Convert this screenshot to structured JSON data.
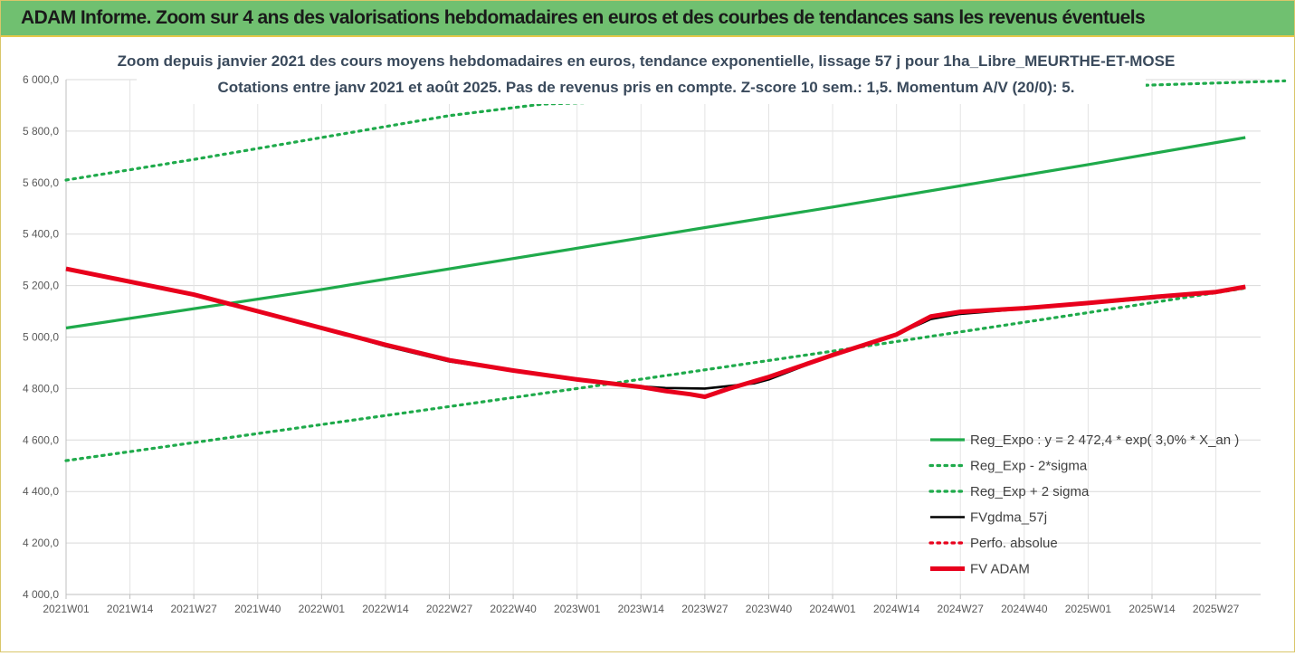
{
  "header": {
    "title": "ADAM Informe. Zoom sur 4 ans des valorisations hebdomadaires en euros et des courbes de tendances sans les revenus éventuels"
  },
  "chart_data": {
    "type": "line",
    "title_line1": "Zoom depuis janvier 2021 des cours moyens hebdomadaires en euros, tendance exponentielle, lissage 57 j pour 1ha_Libre_MEURTHE-ET-MOSE",
    "title_line2": "Cotations entre janv 2021 et août 2025.  Pas de revenus pris en compte. Z-score 10 sem.: 1,5. Momentum A/V (20/0): 5.",
    "ylim": [
      4000,
      6000
    ],
    "y_ticks": [
      "4 000,0",
      "4 200,0",
      "4 400,0",
      "4 600,0",
      "4 800,0",
      "5 000,0",
      "5 200,0",
      "5 400,0",
      "5 600,0",
      "5 800,0",
      "6 000,0"
    ],
    "x_ticks": [
      "2021W01",
      "2021W14",
      "2021W27",
      "2021W40",
      "2022W01",
      "2022W14",
      "2022W27",
      "2022W40",
      "2023W01",
      "2023W14",
      "2023W27",
      "2023W40",
      "2024W01",
      "2024W14",
      "2024W27",
      "2024W40",
      "2025W01",
      "2025W14",
      "2025W27"
    ],
    "x_range_weeks": [
      0,
      240
    ],
    "grid": true,
    "legend_position": "bottom-right",
    "series": [
      {
        "name": "Reg_Expo : y = 2 472,4 * exp( 3,0% *  X_an )",
        "color": "#1faa4b",
        "style": "solid",
        "x": [
          0,
          52,
          104,
          156,
          208,
          240
        ],
        "y": [
          5035,
          5185,
          5345,
          5505,
          5670,
          5775
        ]
      },
      {
        "name": "Reg_Exp - 2*sigma",
        "color": "#1faa4b",
        "style": "dotted",
        "x": [
          0,
          52,
          104,
          156,
          208,
          240
        ],
        "y": [
          4520,
          4660,
          4800,
          4945,
          5095,
          5190
        ]
      },
      {
        "name": "Reg_Exp + 2 sigma",
        "color": "#1faa4b",
        "style": "dotted",
        "x": [
          0,
          26,
          52,
          78,
          97,
          248
        ],
        "y": [
          5610,
          5690,
          5775,
          5860,
          5905,
          5995
        ]
      },
      {
        "name": "FVgdma_57j",
        "color": "#000000",
        "style": "solid",
        "x": [
          0,
          13,
          26,
          39,
          52,
          65,
          78,
          91,
          104,
          117,
          122,
          130,
          140,
          143,
          156,
          169,
          176,
          182,
          195,
          208,
          221,
          234,
          240
        ],
        "y": [
          5265,
          5215,
          5165,
          5100,
          5035,
          4965,
          4905,
          4870,
          4835,
          4808,
          4802,
          4800,
          4820,
          4835,
          4930,
          5010,
          5070,
          5090,
          5110,
          5130,
          5150,
          5175,
          5195
        ]
      },
      {
        "name": "Perfo. absolue",
        "color": "#e8001c",
        "style": "dotted",
        "x": [
          0,
          240
        ],
        "y": [
          5265,
          5195
        ]
      },
      {
        "name": "FV ADAM",
        "color": "#e8001c",
        "style": "solid-thick",
        "x": [
          0,
          13,
          26,
          39,
          52,
          65,
          78,
          91,
          104,
          117,
          122,
          127,
          130,
          135,
          143,
          156,
          169,
          176,
          182,
          195,
          208,
          221,
          234,
          240
        ],
        "y": [
          5265,
          5215,
          5165,
          5100,
          5035,
          4970,
          4910,
          4870,
          4835,
          4806,
          4790,
          4778,
          4768,
          4800,
          4845,
          4930,
          5010,
          5080,
          5098,
          5112,
          5132,
          5155,
          5175,
          5195
        ]
      }
    ]
  }
}
